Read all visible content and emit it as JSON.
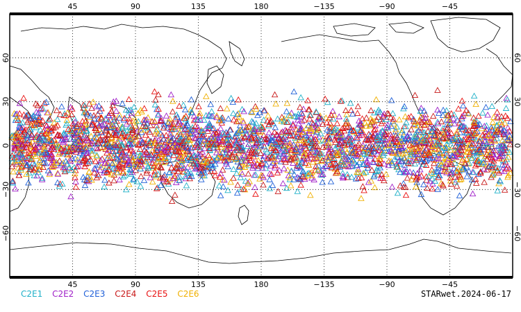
{
  "map": {
    "projection": "cylindrical-equidistant, centered on 180",
    "lon_ticks": [
      "45",
      "90",
      "135",
      "180",
      "−135",
      "−90",
      "−45"
    ],
    "lat_ticks": [
      "60",
      "30",
      "0",
      "−30",
      "−60"
    ],
    "grid": "dotted",
    "grid_color": "#000000",
    "coast_color": "#000000"
  },
  "legend": {
    "items": [
      {
        "label": "C2E1",
        "color": "#1fb0c8"
      },
      {
        "label": "C2E2",
        "color": "#a020c8"
      },
      {
        "label": "C2E3",
        "color": "#2060d8"
      },
      {
        "label": "C2E4",
        "color": "#c81818"
      },
      {
        "label": "C2E5",
        "color": "#e81010"
      },
      {
        "label": "C2E6",
        "color": "#f0b000"
      }
    ]
  },
  "credit": "STARwet.2024-06-17",
  "observations": {
    "marker": "open-triangle",
    "lat_range_deg": [
      -40,
      40
    ],
    "lon_range_deg": [
      0,
      360
    ]
  }
}
